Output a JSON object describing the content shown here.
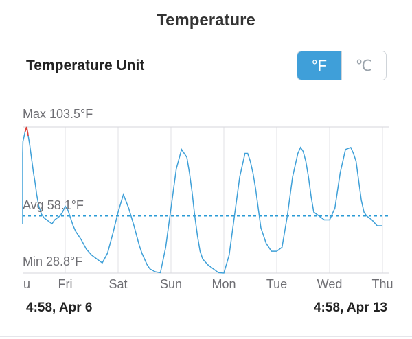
{
  "header": {
    "title": "Temperature"
  },
  "unit_setting": {
    "label": "Temperature Unit",
    "options": [
      "°F",
      "℃"
    ],
    "selected": "°F"
  },
  "stats": {
    "max_label": "Max 103.5°F",
    "avg_label": "Avg 58.1°F",
    "min_label": "Min 28.8°F"
  },
  "range": {
    "start": "4:58,  Apr 6",
    "end": "4:58,  Apr 13"
  },
  "colors": {
    "line": "#3fa0d8",
    "peak": "#e0413a",
    "avg_line": "#2a9bd6",
    "grid": "#e2e2e6",
    "accent": "#3f9fd9"
  },
  "chart_data": {
    "type": "line",
    "title": "",
    "xlabel": "",
    "ylabel": "",
    "x_ticks": [
      "u",
      "Fri",
      "Sat",
      "Sun",
      "Mon",
      "Tue",
      "Wed",
      "Thu"
    ],
    "max": 103.5,
    "avg": 58.1,
    "min": 28.8,
    "ylim": [
      28.8,
      103.5
    ],
    "grid": "vertical",
    "series": [
      {
        "x": [
          0,
          0.04,
          0.08,
          0.12,
          0.16,
          0.2,
          0.24,
          0.27,
          0.3,
          0.33,
          0.36,
          0.38,
          0.4,
          0.43,
          0.46,
          0.5,
          0.55,
          0.6,
          0.65,
          0.7,
          0.75,
          0.8,
          0.85,
          0.9,
          0.95,
          1.0,
          1.05,
          1.1,
          1.15,
          1.2,
          1.3,
          1.4,
          1.5,
          1.6,
          1.7,
          1.8,
          1.9,
          2.0,
          2.1,
          2.2,
          2.3,
          2.35,
          2.4,
          2.45,
          2.5,
          2.55,
          2.6,
          2.7,
          2.8,
          2.9,
          3.0,
          3.1,
          3.2,
          3.3,
          3.35,
          3.4,
          3.45,
          3.5,
          3.55,
          3.6,
          3.7,
          3.8,
          3.9,
          4.0,
          4.1,
          4.2,
          4.3,
          4.4,
          4.45,
          4.5,
          4.55,
          4.6,
          4.65,
          4.7,
          4.8,
          4.9,
          5.0,
          5.1,
          5.2,
          5.3,
          5.4,
          5.45,
          5.5,
          5.55,
          5.6,
          5.65,
          5.7,
          5.8,
          5.9,
          6.0,
          6.1,
          6.2,
          6.3,
          6.4,
          6.45,
          6.5,
          6.55,
          6.6,
          6.65,
          6.7,
          6.8,
          6.9,
          7.0
        ],
        "y": [
          56,
          54,
          60,
          75,
          90,
          96,
          101,
          103.5,
          99,
          94,
          88,
          84,
          80,
          75,
          69,
          63,
          59,
          57,
          56,
          55,
          54,
          56,
          57,
          58,
          60,
          63,
          61,
          57,
          53,
          50,
          46,
          41,
          38,
          36,
          34,
          39,
          49,
          60,
          69,
          62,
          53,
          48,
          43,
          39,
          36,
          33,
          31,
          29.5,
          29,
          42,
          62,
          82,
          92,
          88,
          80,
          70,
          58,
          48,
          40,
          36,
          33,
          31,
          29,
          28.8,
          38,
          58,
          78,
          90,
          90,
          86,
          80,
          72,
          62,
          52,
          44,
          40,
          40,
          42,
          58,
          78,
          90,
          93,
          91,
          86,
          78,
          68,
          60,
          58,
          56,
          56,
          62,
          80,
          92,
          93,
          90,
          86,
          76,
          66,
          60,
          58,
          56,
          53,
          53
        ]
      }
    ]
  }
}
